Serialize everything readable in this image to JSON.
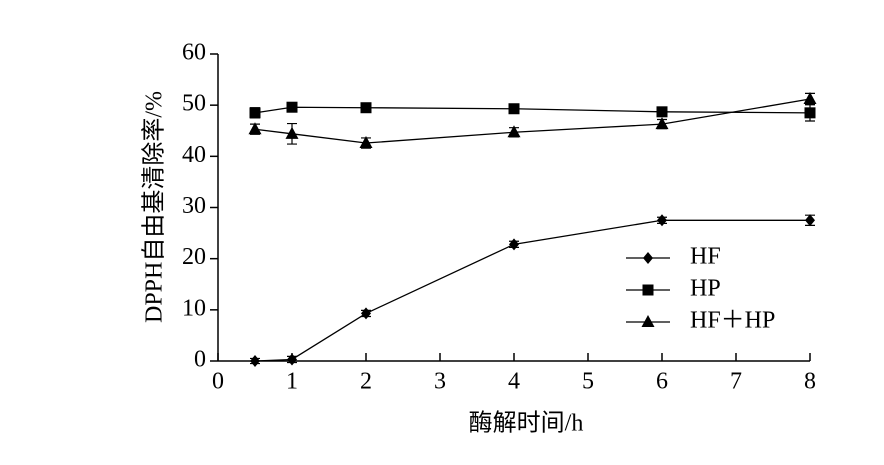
{
  "chart_data": {
    "type": "line",
    "xlabel": "酶解时间/h",
    "ylabel": "DPPH自由基清除率/%",
    "x": [
      0.5,
      1,
      2,
      4,
      6,
      8
    ],
    "series": [
      {
        "name": "HF",
        "color": "#000000",
        "marker": "diamond",
        "values": [
          0,
          0.3,
          9.3,
          22.8,
          27.5,
          27.5
        ],
        "errors": [
          0.5,
          0.6,
          0.6,
          0.6,
          0.6,
          1.0
        ]
      },
      {
        "name": "HP",
        "color": "#000000",
        "marker": "square",
        "values": [
          48.5,
          49.6,
          49.5,
          49.3,
          48.7,
          48.5
        ],
        "errors": [
          1.0,
          0.8,
          0.8,
          0.8,
          0.9,
          1.6
        ]
      },
      {
        "name": "HF＋HP",
        "color": "#000000",
        "marker": "triangle",
        "values": [
          45.3,
          44.4,
          42.6,
          44.7,
          46.3,
          51.2
        ],
        "errors": [
          1.0,
          2.0,
          1.0,
          0.9,
          0.9,
          1.1
        ]
      }
    ],
    "xlim": [
      0,
      8
    ],
    "xticks": [
      0,
      1,
      2,
      3,
      4,
      5,
      6,
      7,
      8
    ],
    "ylim": [
      0,
      60
    ],
    "yticks": [
      0,
      10,
      20,
      30,
      40,
      50,
      60
    ],
    "grid": false,
    "legend": "right"
  }
}
